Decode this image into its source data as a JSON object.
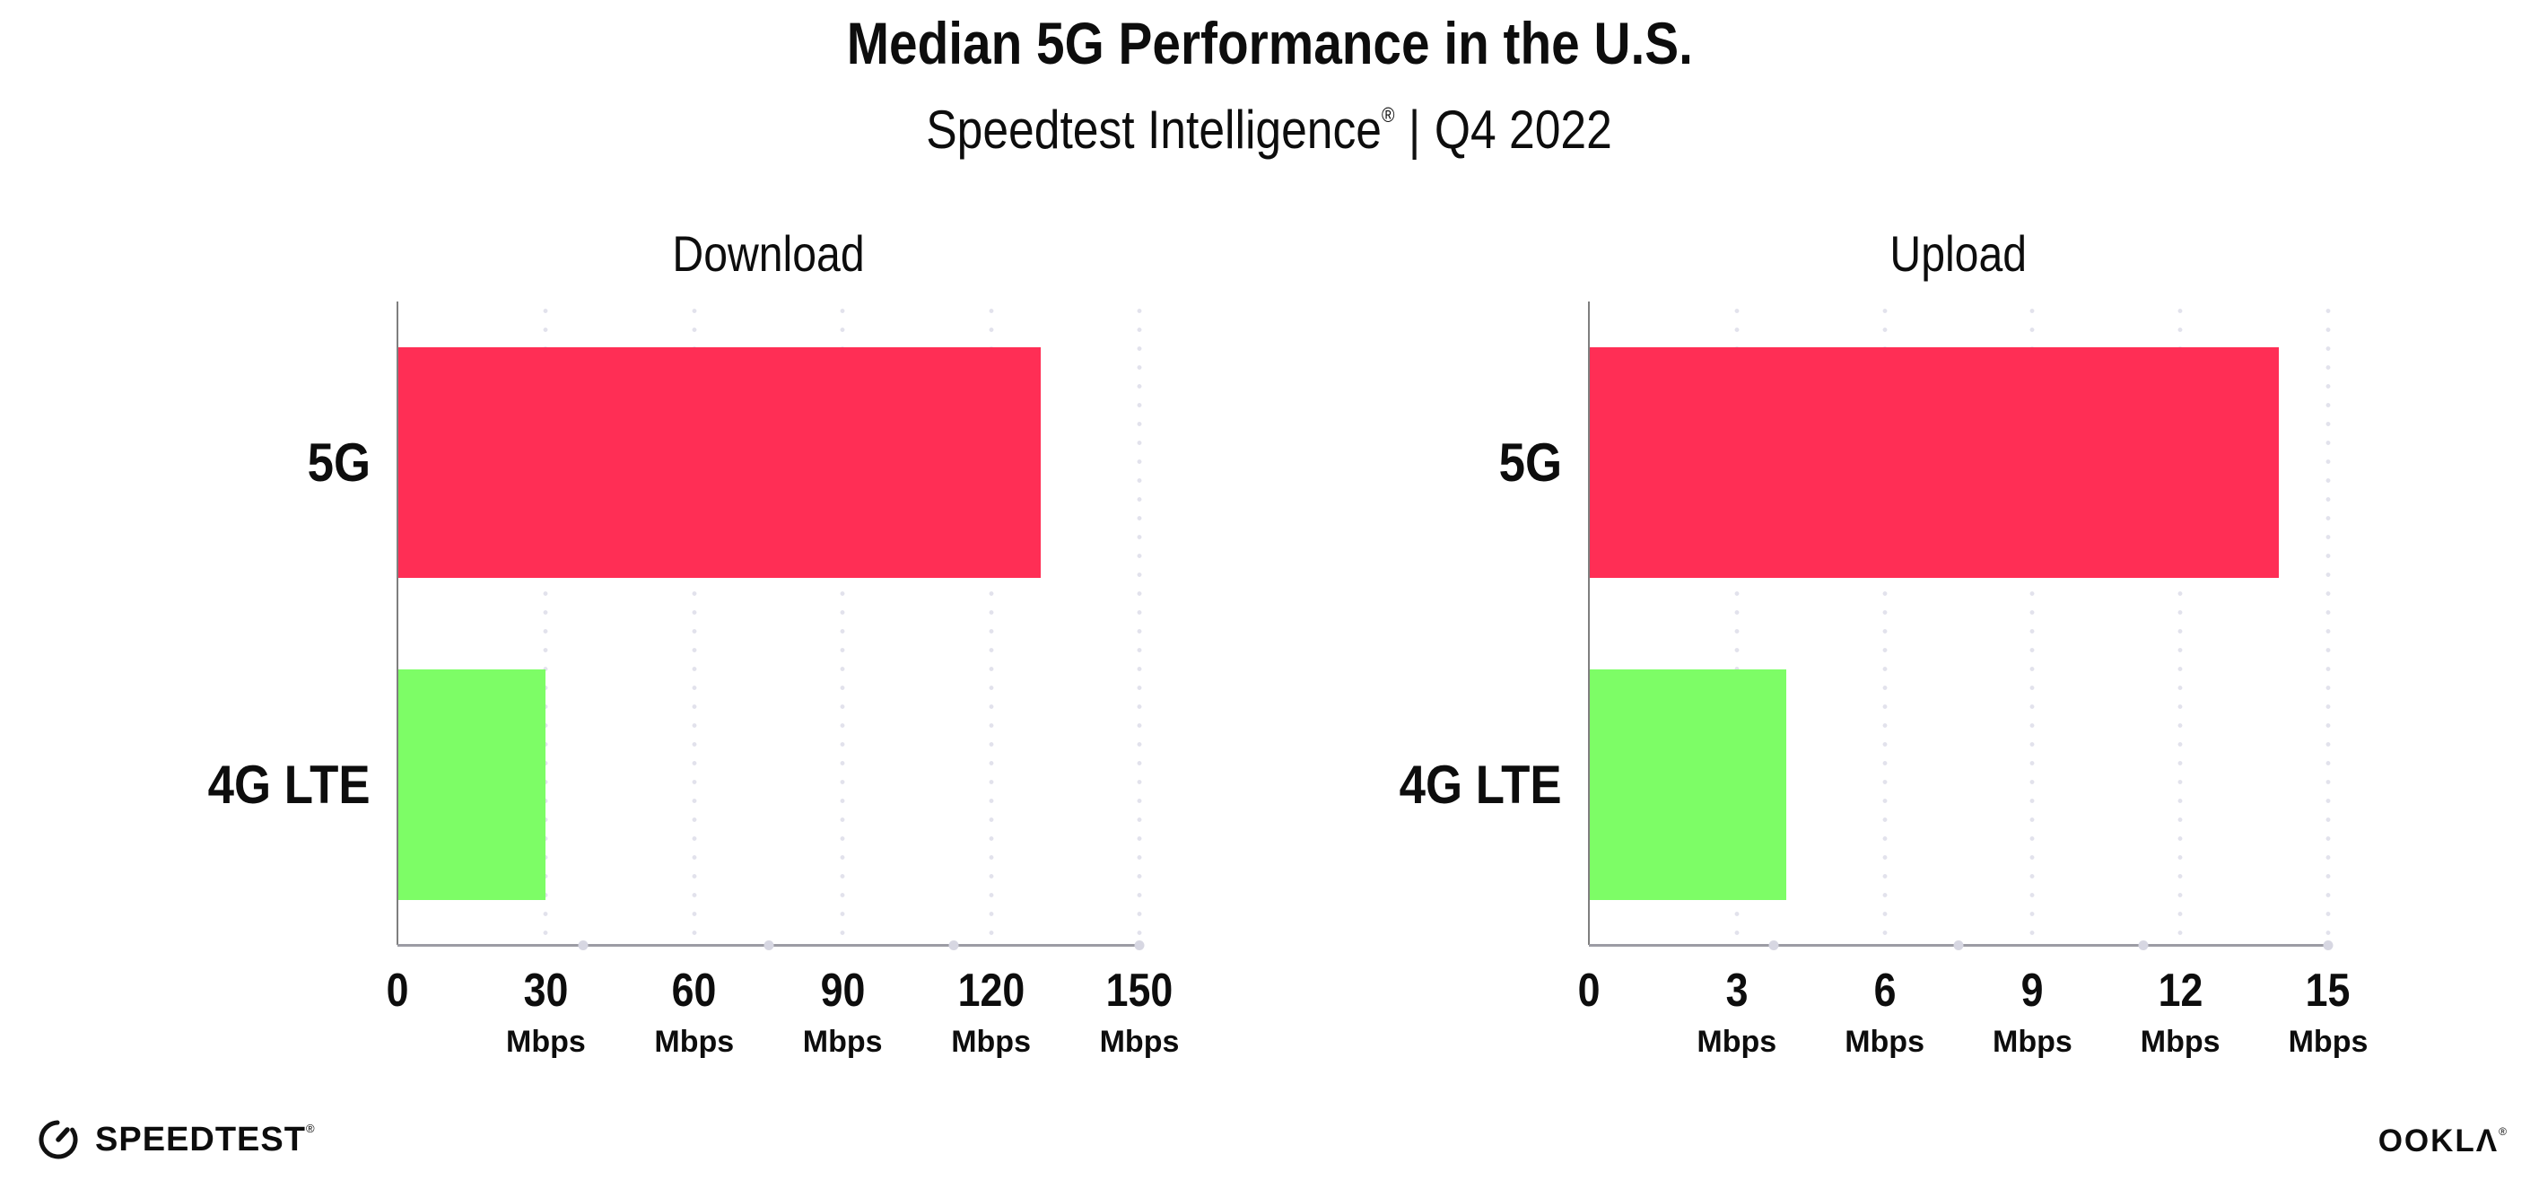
{
  "header": {
    "title": "Median 5G Performance in the U.S.",
    "subtitle_brand": "Speedtest Intelligence",
    "subtitle_reg": "®",
    "subtitle_sep": "|",
    "subtitle_period": "Q4 2022"
  },
  "chart_data": [
    {
      "type": "bar",
      "orientation": "horizontal",
      "title": "Download",
      "categories": [
        "5G",
        "4G LTE"
      ],
      "values": [
        130,
        30
      ],
      "unit": "Mbps",
      "ticks": [
        0,
        30,
        60,
        90,
        120,
        150
      ],
      "xlim": [
        0,
        150
      ],
      "bar_colors": [
        "#FF2E55",
        "#7DFD66"
      ],
      "grid": "dotted-vertical",
      "legend": "none"
    },
    {
      "type": "bar",
      "orientation": "horizontal",
      "title": "Upload",
      "categories": [
        "5G",
        "4G LTE"
      ],
      "values": [
        14,
        4
      ],
      "unit": "Mbps",
      "ticks": [
        0,
        3,
        6,
        9,
        12,
        15
      ],
      "xlim": [
        0,
        15
      ],
      "bar_colors": [
        "#FF2E55",
        "#7DFD66"
      ],
      "grid": "dotted-vertical",
      "legend": "none"
    }
  ],
  "colors": {
    "bar_5g": "#FF2E55",
    "bar_4g_lte": "#7DFD66",
    "axis_line": "#9c9ca4",
    "y_axis_line": "#7f7f7f",
    "gridline_dots": "#e2e2ec",
    "text": "#0d0d0d"
  },
  "footer": {
    "speedtest_label": "SPEEDTEST",
    "speedtest_reg": "®",
    "ookla_label": "OOKLΛ",
    "ookla_reg": "®"
  }
}
